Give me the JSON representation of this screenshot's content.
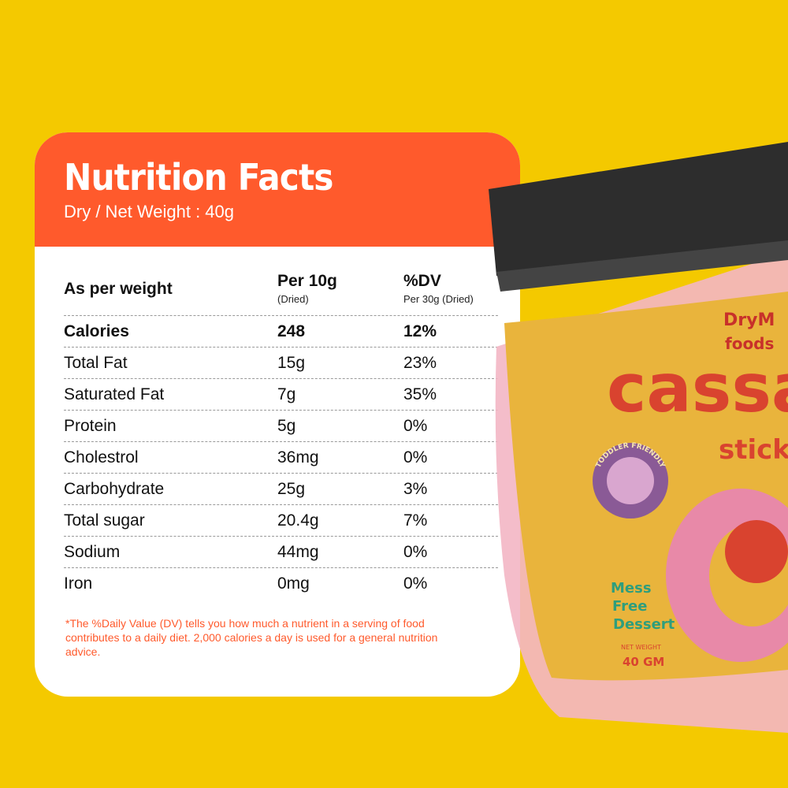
{
  "card": {
    "title": "Nutrition Facts",
    "subtitle": "Dry / Net Weight : 40g",
    "header": {
      "col1": "As per weight",
      "col2": "Per 10g",
      "col2_sub": "(Dried)",
      "col3": "%DV",
      "col3_sub": "Per 30g (Dried)"
    },
    "rows": [
      {
        "name": "Calories",
        "per10g": "248",
        "dv": "12%"
      },
      {
        "name": "Total Fat",
        "per10g": "15g",
        "dv": "23%"
      },
      {
        "name": "Saturated Fat",
        "per10g": "7g",
        "dv": "35%"
      },
      {
        "name": "Protein",
        "per10g": "5g",
        "dv": "0%"
      },
      {
        "name": "Cholestrol",
        "per10g": "36mg",
        "dv": "0%"
      },
      {
        "name": "Carbohydrate",
        "per10g": "25g",
        "dv": "3%"
      },
      {
        "name": "Total sugar",
        "per10g": "20.4g",
        "dv": "7%"
      },
      {
        "name": "Sodium",
        "per10g": "44mg",
        "dv": "0%"
      },
      {
        "name": "Iron",
        "per10g": "0mg",
        "dv": "0%"
      }
    ],
    "footnote": "*The %Daily Value (DV) tells you how much a nutrient in a serving of food contributes to a daily diet. 2,000 calories a day is used for a general nutrition advice."
  },
  "product": {
    "brand": "DryM foods",
    "name": "cassa",
    "name2": "sticks",
    "badge": "TODDLER FRIENDLY",
    "tagline": [
      "Mess",
      "Free",
      "Dessert"
    ],
    "weight_label": "NET WEIGHT",
    "weight": "40 GM"
  },
  "colors": {
    "background": "#f4c900",
    "accent": "#ff5a2c"
  }
}
